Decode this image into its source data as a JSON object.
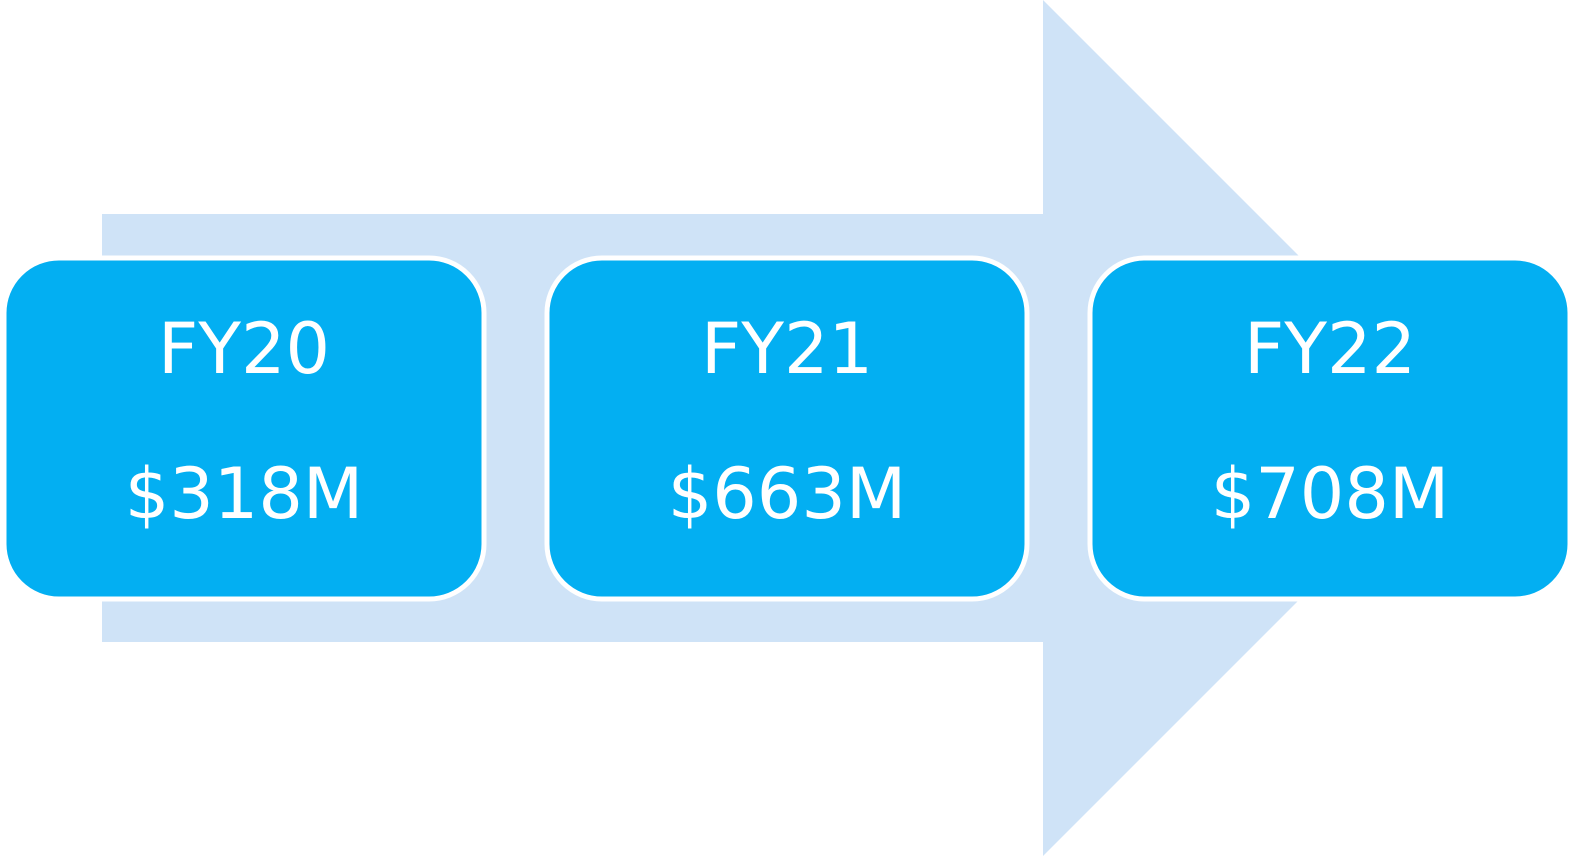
{
  "nodes": [
    {
      "label": "FY20",
      "value": "$318M"
    },
    {
      "label": "FY21",
      "value": "$663M"
    },
    {
      "label": "FY22",
      "value": "$708M"
    }
  ]
}
